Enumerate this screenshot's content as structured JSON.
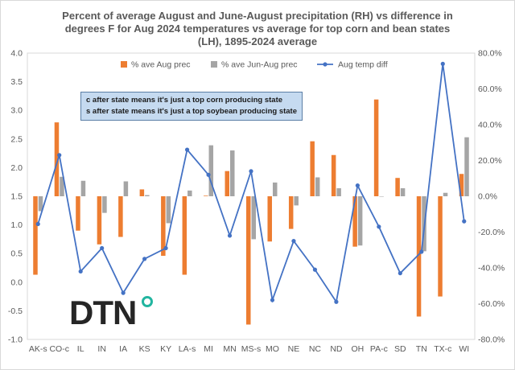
{
  "chart_data": {
    "type": "bar+line",
    "title_lines": [
      "Percent of average August and June-August precipitation (RH) vs difference in",
      "degrees F for Aug 2024 temperatures vs average for top corn and bean states",
      "(LH), 1895-2024 average"
    ],
    "categories": [
      "AK-s",
      "CO-c",
      "IL",
      "IN",
      "IA",
      "KS",
      "KY",
      "LA-s",
      "MI",
      "MN",
      "MS-s",
      "MO",
      "NE",
      "NC",
      "ND",
      "OH",
      "PA-c",
      "SD",
      "TN",
      "TX-c",
      "WI"
    ],
    "left_axis": {
      "min": -1.0,
      "max": 4.0,
      "step": 0.5,
      "ticks": [
        "-1.0",
        "-0.5",
        "0.0",
        "0.5",
        "1.0",
        "1.5",
        "2.0",
        "2.5",
        "3.0",
        "3.5",
        "4.0"
      ]
    },
    "right_axis": {
      "min": -80,
      "max": 80,
      "step": 20,
      "ticks": [
        "-80.0%",
        "-60.0%",
        "-40.0%",
        "-20.0%",
        "0.0%",
        "20.0%",
        "40.0%",
        "60.0%",
        "80.0%"
      ]
    },
    "series": [
      {
        "name": "% ave Aug prec",
        "type": "bar",
        "axis": "left",
        "color": "#ed7d31",
        "values": [
          0.13,
          2.79,
          0.9,
          0.66,
          0.79,
          1.62,
          0.46,
          0.13,
          1.51,
          1.94,
          -0.74,
          0.71,
          0.93,
          2.46,
          2.22,
          0.62,
          3.19,
          1.82,
          -0.6,
          -0.25,
          1.89
        ]
      },
      {
        "name": "% ave Jun-Aug prec",
        "type": "bar",
        "axis": "left",
        "color": "#a5a5a5",
        "values": [
          1.24,
          1.84,
          1.77,
          1.21,
          1.76,
          1.52,
          1.03,
          1.6,
          2.39,
          2.3,
          0.75,
          1.74,
          1.34,
          1.83,
          1.64,
          0.64,
          1.5,
          1.64,
          0.54,
          1.56,
          2.53
        ]
      },
      {
        "name": "Aug temp diff",
        "type": "line",
        "axis": "right",
        "color": "#4472c4",
        "values": [
          -15.5,
          23,
          -42,
          -29,
          -54,
          -35,
          -29,
          26,
          12,
          -22,
          14,
          -58,
          -25,
          -41,
          -59,
          6,
          -17,
          -43,
          -31,
          74,
          -14
        ]
      }
    ],
    "notes": [
      "c after state means it's just a top corn producing state",
      "s after state means it's just a top soybean producing state"
    ],
    "logo_text": "DTN"
  }
}
